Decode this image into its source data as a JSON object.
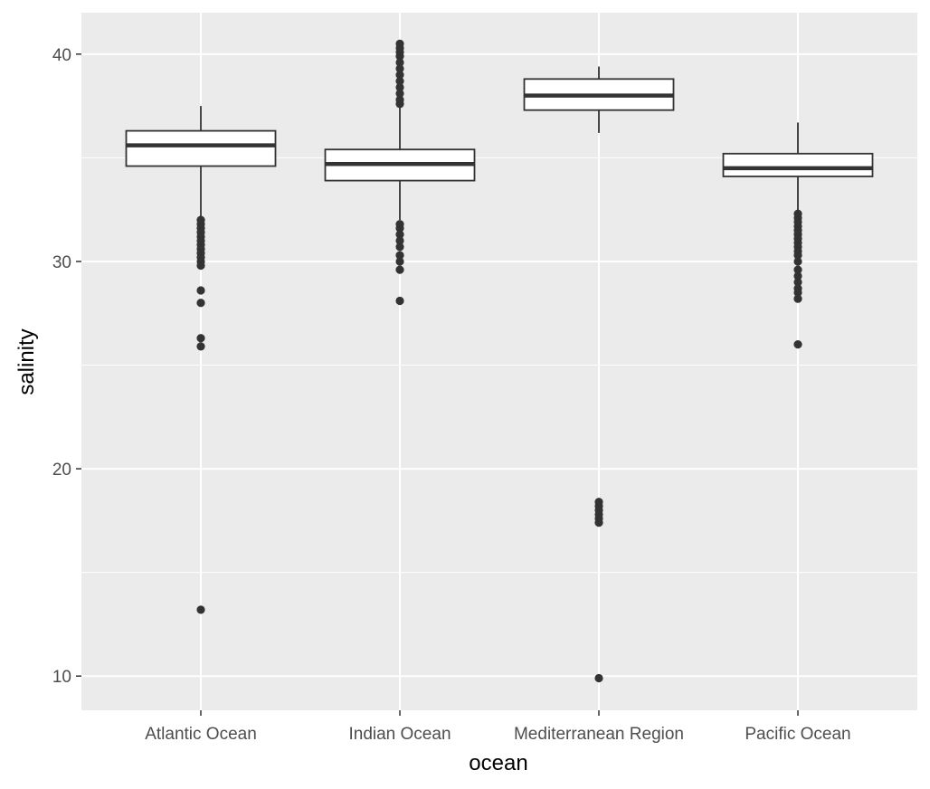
{
  "chart_data": {
    "type": "boxplot",
    "title": "",
    "xlabel": "ocean",
    "ylabel": "salinity",
    "ylim": [
      8.35,
      42.0
    ],
    "y_ticks": [
      10,
      20,
      30,
      40
    ],
    "y_minor_ticks": [
      15,
      25,
      35
    ],
    "grid": true,
    "categories": [
      "Atlantic Ocean",
      "Indian Ocean",
      "Mediterranean Region",
      "Pacific Ocean"
    ],
    "boxes": [
      {
        "category": "Atlantic Ocean",
        "whisker_low": 32.0,
        "q1": 34.6,
        "median": 35.6,
        "q3": 36.3,
        "whisker_high": 37.5,
        "outliers": [
          32.0,
          31.8,
          31.6,
          31.4,
          31.2,
          31.0,
          30.8,
          30.6,
          30.4,
          30.2,
          30.0,
          29.8,
          28.6,
          28.0,
          26.3,
          25.9,
          13.2
        ]
      },
      {
        "category": "Indian Ocean",
        "whisker_low": 32.0,
        "q1": 33.9,
        "median": 34.7,
        "q3": 35.4,
        "whisker_high": 37.5,
        "outliers": [
          40.5,
          40.3,
          40.1,
          39.9,
          39.6,
          39.3,
          39.0,
          38.7,
          38.4,
          38.1,
          37.8,
          37.6,
          31.8,
          31.6,
          31.3,
          31.0,
          30.7,
          30.3,
          30.0,
          29.6,
          28.1
        ]
      },
      {
        "category": "Mediterranean Region",
        "whisker_low": 36.2,
        "q1": 37.3,
        "median": 38.0,
        "q3": 38.8,
        "whisker_high": 39.4,
        "outliers": [
          18.4,
          18.2,
          18.0,
          17.8,
          17.6,
          17.4,
          9.9
        ]
      },
      {
        "category": "Pacific Ocean",
        "whisker_low": 32.3,
        "q1": 34.1,
        "median": 34.5,
        "q3": 35.2,
        "whisker_high": 36.7,
        "outliers": [
          32.3,
          32.1,
          31.9,
          31.7,
          31.5,
          31.3,
          31.1,
          30.9,
          30.7,
          30.5,
          30.3,
          30.0,
          29.6,
          29.3,
          29.0,
          28.7,
          28.5,
          28.2,
          26.0
        ]
      }
    ],
    "colors": {
      "panel_background": "#ebebeb",
      "grid": "#ffffff",
      "box_fill": "#ffffff",
      "box_line": "#333333",
      "outlier": "#333333"
    }
  }
}
